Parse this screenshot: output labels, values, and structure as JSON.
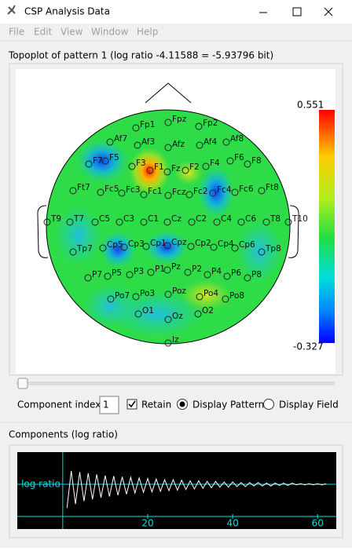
{
  "window": {
    "title": "CSP Analysis Data"
  },
  "menu": [
    "File",
    "Edit",
    "View",
    "Window",
    "Help"
  ],
  "topoplot": {
    "title": "Topoplot of pattern 1 (log ratio -4.11588 = -5.93796 bit)",
    "colorbar": {
      "max": 0.551,
      "min": -0.327
    },
    "electrodes": [
      "Fp1",
      "Fpz",
      "Fp2",
      "Af7",
      "Af3",
      "Afz",
      "Af4",
      "Af8",
      "F7",
      "F5",
      "F3",
      "F1",
      "Fz",
      "F2",
      "F4",
      "F6",
      "F8",
      "Ft7",
      "Fc5",
      "Fc3",
      "Fc1",
      "Fcz",
      "Fc2",
      "Fc4",
      "Fc6",
      "Ft8",
      "T9",
      "T7",
      "C5",
      "C3",
      "C1",
      "Cz",
      "C2",
      "C4",
      "C6",
      "T8",
      "T10",
      "Tp7",
      "Cp5",
      "Cp3",
      "Cp1",
      "Cpz",
      "Cp2",
      "Cp4",
      "Cp6",
      "Tp8",
      "P7",
      "P5",
      "P3",
      "P1",
      "Pz",
      "P2",
      "P4",
      "P6",
      "P8",
      "Po7",
      "Po3",
      "Poz",
      "Po4",
      "Po8",
      "O1",
      "Oz",
      "O2",
      "Iz"
    ]
  },
  "controls": {
    "component_index_label": "Component index:",
    "component_index": 1,
    "retain": "Retain",
    "display_pattern": "Display Pattern",
    "display_field": "Display Field"
  },
  "components_title": "Components (log ratio)",
  "chart_data": {
    "type": "line",
    "ylabel": "log ratio",
    "color": "#ffffff",
    "xlim": [
      -10.7,
      64.4
    ],
    "ylim": [
      -5,
      5
    ],
    "xticks": [
      20,
      40,
      60
    ],
    "x": [
      1,
      2,
      3,
      4,
      5,
      6,
      7,
      8,
      9,
      10,
      11,
      12,
      13,
      14,
      15,
      16,
      17,
      18,
      19,
      20,
      21,
      22,
      23,
      24,
      25,
      26,
      27,
      28,
      29,
      30,
      31,
      32,
      33,
      34,
      35,
      36,
      37,
      38,
      39,
      40,
      41,
      42,
      43,
      44,
      45,
      46,
      47,
      48,
      49,
      50,
      51,
      52,
      53,
      54,
      55,
      56,
      57,
      58,
      59,
      60,
      61,
      62
    ],
    "values": [
      -4.1,
      2.3,
      -3.4,
      2.1,
      -2.9,
      1.9,
      -2.6,
      1.7,
      -2.3,
      1.5,
      -2.1,
      1.4,
      -1.9,
      1.3,
      -1.7,
      1.2,
      -1.5,
      1.1,
      -1.4,
      1.0,
      -1.3,
      0.9,
      -1.2,
      0.8,
      -1.1,
      0.8,
      -1.0,
      0.7,
      -0.9,
      0.6,
      -0.8,
      0.6,
      -0.7,
      0.5,
      -0.6,
      0.5,
      -0.5,
      0.4,
      -0.5,
      0.4,
      -0.4,
      0.3,
      -0.4,
      0.3,
      -0.3,
      0.3,
      -0.3,
      0.2,
      -0.3,
      0.2,
      -0.2,
      0.2,
      -0.2,
      0.2,
      -0.1,
      0.1,
      -0.1,
      0.1,
      -0.1,
      0.1,
      -0.1,
      0.1
    ]
  }
}
